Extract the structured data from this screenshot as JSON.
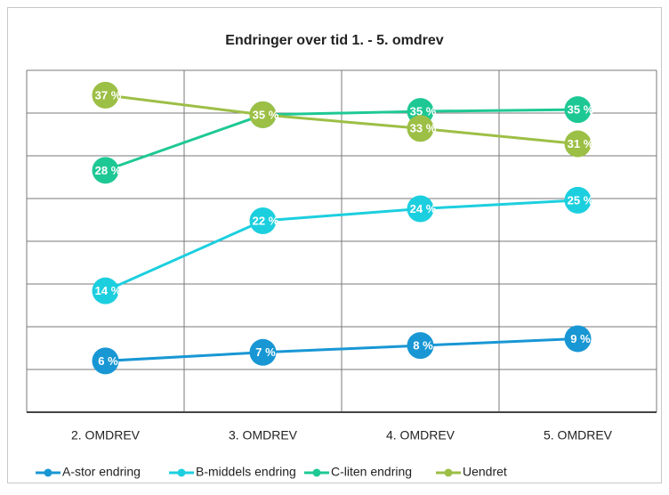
{
  "chart_data": {
    "type": "line",
    "title": "Endringer over tid 1. - 5. omdrev",
    "categories": [
      "2. OMDREV",
      "3. OMDREV",
      "4. OMDREV",
      "5. OMDREV"
    ],
    "series": [
      {
        "name": "A-stor endring",
        "color": "#1897d4",
        "values": [
          6.0,
          7.0,
          7.8,
          8.6
        ],
        "value_labels": [
          "6 %",
          "7 %",
          "8 %",
          "9 %"
        ]
      },
      {
        "name": "B-middels endring",
        "color": "#1ccfdf",
        "values": [
          14.2,
          22.4,
          23.8,
          24.8
        ],
        "value_labels": [
          "14 %",
          "22 %",
          "24 %",
          "25 %"
        ]
      },
      {
        "name": "C-liten endring",
        "color": "#1ec894",
        "values": [
          28.3,
          34.8,
          35.2,
          35.4
        ],
        "value_labels": [
          "28 %",
          "35 %",
          "35 %",
          "35 %"
        ]
      },
      {
        "name": "Uendret",
        "color": "#9cbf45",
        "values": [
          37.1,
          34.8,
          33.2,
          31.4
        ],
        "value_labels": [
          "37 %",
          "35 %",
          "33 %",
          "31 %"
        ]
      }
    ],
    "ylim": [
      0,
      40
    ],
    "yticks": [
      0,
      5,
      10,
      15,
      20,
      25,
      30,
      35,
      40
    ],
    "grid": true,
    "legend": "bottom"
  }
}
